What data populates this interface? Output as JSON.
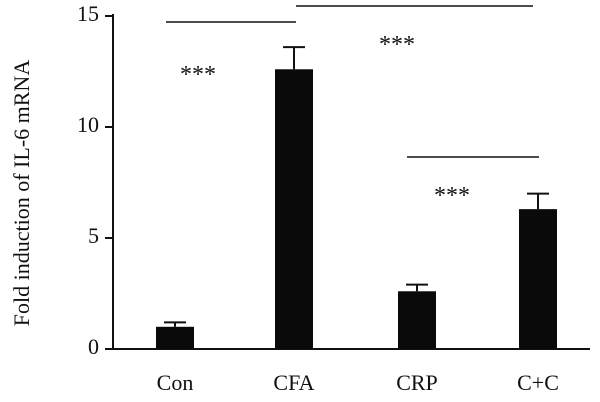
{
  "chart_data": {
    "type": "bar",
    "categories": [
      "Con",
      "CFA",
      "CRP",
      "C+C"
    ],
    "values": [
      1.0,
      12.6,
      2.6,
      6.3
    ],
    "errors": [
      0.2,
      1.0,
      0.3,
      0.7
    ],
    "xlabel": "",
    "ylabel": "Fold induction of IL-6 mRNA",
    "ylim": [
      0,
      15
    ],
    "yticks": [
      0,
      5,
      10,
      15
    ],
    "grid": false,
    "bar_color": "#0a0a0a",
    "significance": [
      {
        "from": "Con",
        "to": "CFA",
        "label": "***"
      },
      {
        "from": "CFA",
        "to": "C+C",
        "label": "***"
      },
      {
        "from": "CRP",
        "to": "C+C",
        "label": "***"
      }
    ]
  }
}
